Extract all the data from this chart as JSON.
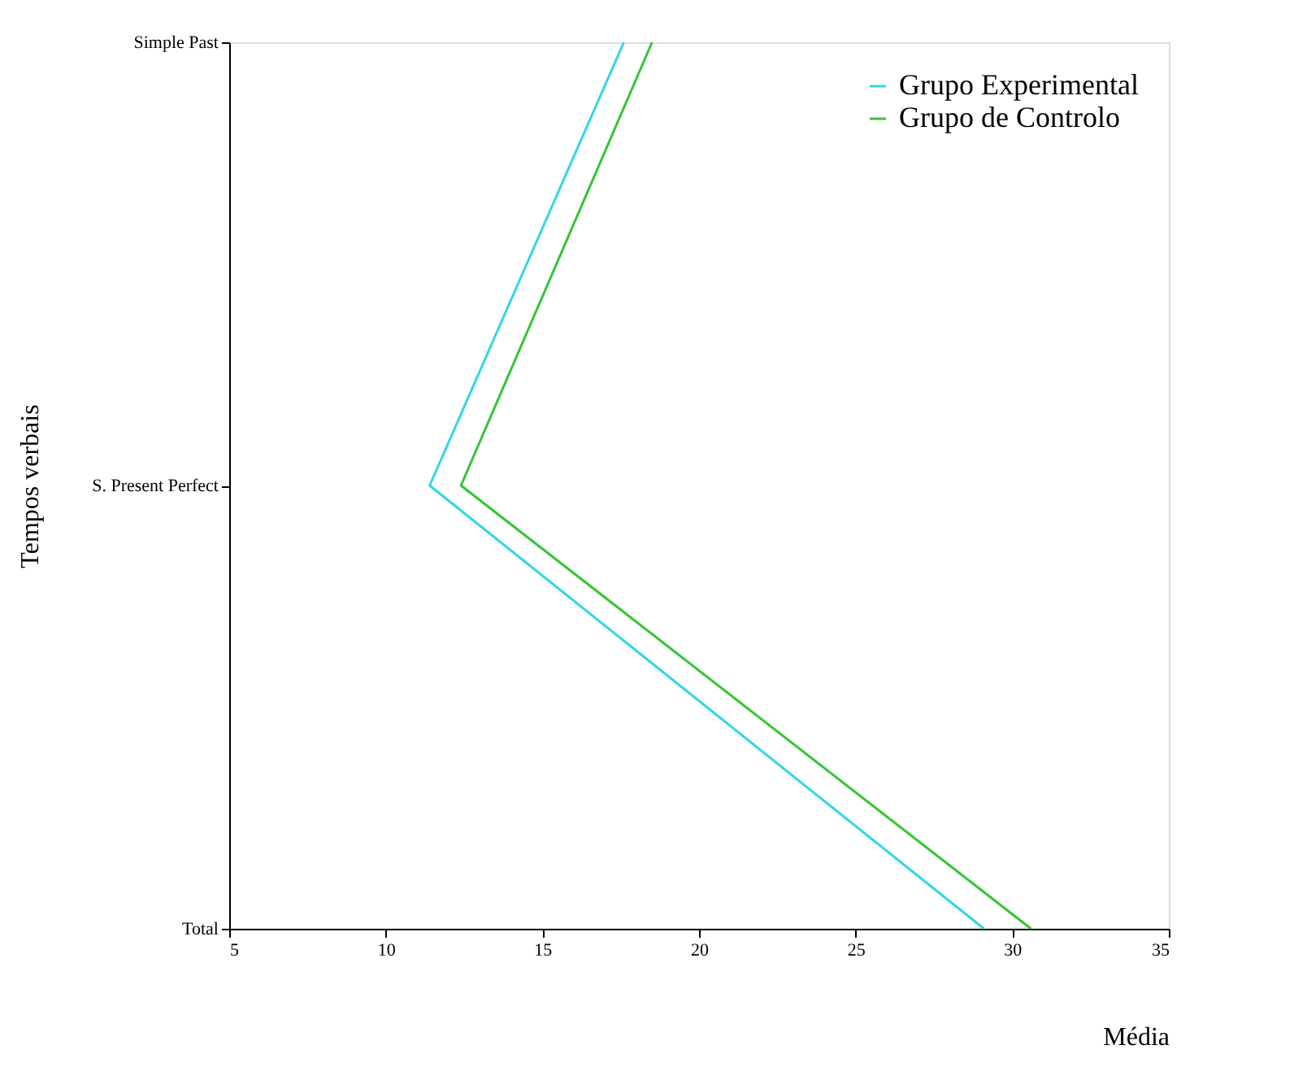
{
  "chart_data": {
    "type": "line",
    "orientation": "horizontal",
    "xlabel": "Média",
    "ylabel": "Tempos verbais",
    "categories": [
      "Simple Past",
      "S. Present Perfect",
      "Total"
    ],
    "series": [
      {
        "name": "Grupo Experimental",
        "color": "#33d6e6",
        "values": [
          17.6,
          11.4,
          29.1
        ]
      },
      {
        "name": "Grupo de Controlo",
        "color": "#33c633",
        "values": [
          18.5,
          12.4,
          30.6
        ]
      }
    ],
    "xlim": [
      5,
      35
    ],
    "xticks": [
      5,
      10,
      15,
      20,
      25,
      30,
      35
    ],
    "grid": false,
    "legend": "top right",
    "marker": "none",
    "line_style": "solid"
  }
}
